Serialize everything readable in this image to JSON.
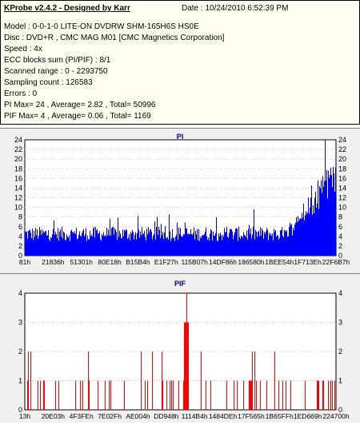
{
  "header": {
    "title": "KProbe v2.4.2 - Designed by Karr",
    "date": "Date : 10/24/2010 6:52:39 PM",
    "lines": [
      "Model : 0-0-1-0 LITE-ON DVDRW SHM-165H6S HS0E",
      "Disc : DVD+R , CMC MAG M01 [CMC Magnetics Corporation]",
      "Speed : 4x",
      "ECC blocks sum (PI/PIF) : 8/1",
      "Scanned range : 0 - 2293750",
      "Sampling count : 126583",
      "Errors : 0",
      "PI Max= 24 , Average= 2.82 , Total= 50996",
      "PIF Max= 4 , Average= 0.06 , Total= 1169"
    ]
  },
  "chart_data": [
    {
      "type": "bar",
      "title": "PI",
      "color": "#0000ff",
      "ylim": [
        0,
        24
      ],
      "yticks": [
        0,
        2,
        4,
        6,
        8,
        10,
        12,
        14,
        16,
        18,
        20,
        22,
        24
      ],
      "xticks": [
        "81h",
        "21836h",
        "51301h",
        "80E18h",
        "B15B4h",
        "E1F27h",
        "115B07h",
        "14DF86h",
        "186580h",
        "1BEE54h",
        "1F713Eh",
        "22F6B7h"
      ],
      "max": 24,
      "average": 2.82
    },
    {
      "type": "bar",
      "title": "PIF",
      "color": "#ff0000",
      "ylim": [
        0,
        4
      ],
      "yticks": [
        0,
        1,
        2,
        3,
        4
      ],
      "xticks": [
        "13h",
        "20E03h",
        "4F3FEh",
        "7E02Fh",
        "AE004h",
        "DD948h",
        "1114B4h",
        "1484DEh",
        "17F565h",
        "1B65FFh",
        "1ED669h",
        "224700h"
      ],
      "max": 4,
      "average": 0.06
    }
  ]
}
